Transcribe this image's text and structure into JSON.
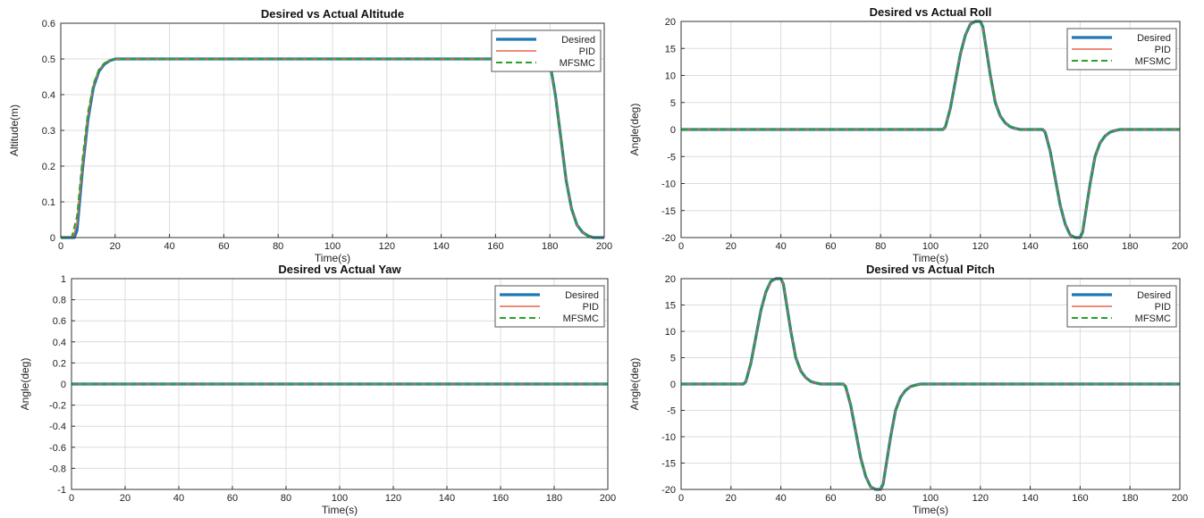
{
  "colors": {
    "desired": "#1f77b4",
    "pid": "#e8654a",
    "mfsmc": "#2ca02c",
    "grid": "#dcdcdc",
    "axis": "#333333"
  },
  "chart_data": [
    {
      "type": "line",
      "title": "Desired vs Actual Altitude",
      "xlabel": "Time(s)",
      "ylabel": "Altitude(m)",
      "xlim": [
        0,
        200
      ],
      "ylim": [
        0,
        0.6
      ],
      "xticks": [
        "0",
        "20",
        "40",
        "60",
        "80",
        "100",
        "120",
        "140",
        "160",
        "180",
        "200"
      ],
      "yticks": [
        "0",
        "0.1",
        "0.2",
        "0.3",
        "0.4",
        "0.5",
        "0.6"
      ],
      "grid": true,
      "legend": "top-right",
      "series": [
        {
          "name": "Desired",
          "x": [
            0,
            5,
            6,
            8,
            10,
            12,
            14,
            16,
            18,
            20,
            25,
            179,
            180,
            182,
            184,
            186,
            188,
            190,
            192,
            194,
            196,
            200
          ],
          "y": [
            0,
            0,
            0.02,
            0.19,
            0.33,
            0.42,
            0.465,
            0.485,
            0.495,
            0.5,
            0.5,
            0.5,
            0.49,
            0.4,
            0.28,
            0.16,
            0.08,
            0.035,
            0.015,
            0.005,
            0,
            0
          ]
        },
        {
          "name": "PID",
          "x": [
            0,
            4.5,
            6,
            8,
            10,
            12,
            14,
            16,
            18,
            20,
            25,
            179,
            180,
            182,
            184,
            186,
            188,
            190,
            192,
            194,
            196,
            200
          ],
          "y": [
            0,
            0,
            0.04,
            0.2,
            0.34,
            0.425,
            0.468,
            0.487,
            0.496,
            0.5,
            0.5,
            0.5,
            0.49,
            0.4,
            0.28,
            0.16,
            0.08,
            0.035,
            0.015,
            0.005,
            0,
            0
          ]
        },
        {
          "name": "MFSMC",
          "x": [
            0,
            4,
            6,
            8,
            10,
            12,
            14,
            16,
            18,
            20,
            25,
            179,
            180,
            182,
            184,
            186,
            188,
            190,
            192,
            194,
            196,
            200
          ],
          "y": [
            0,
            0,
            0.06,
            0.22,
            0.35,
            0.43,
            0.47,
            0.488,
            0.496,
            0.5,
            0.5,
            0.5,
            0.49,
            0.4,
            0.28,
            0.16,
            0.08,
            0.035,
            0.015,
            0.005,
            0,
            0
          ]
        }
      ]
    },
    {
      "type": "line",
      "title": "Desired vs Actual Roll",
      "xlabel": "Time(s)",
      "ylabel": "Angle(deg)",
      "xlim": [
        0,
        200
      ],
      "ylim": [
        -20,
        20
      ],
      "xticks": [
        "0",
        "20",
        "40",
        "60",
        "80",
        "100",
        "120",
        "140",
        "160",
        "180",
        "200"
      ],
      "yticks": [
        "-20",
        "-15",
        "-10",
        "-5",
        "0",
        "5",
        "10",
        "15",
        "20"
      ],
      "grid": true,
      "legend": "top-right",
      "series": [
        {
          "name": "Desired",
          "x": [
            0,
            105,
            106,
            108,
            110,
            112,
            114,
            116,
            118,
            120,
            121,
            122,
            124,
            126,
            128,
            130,
            132,
            134,
            136,
            138,
            140,
            142,
            145,
            146,
            148,
            150,
            152,
            154,
            156,
            158,
            160,
            161,
            162,
            164,
            166,
            168,
            170,
            172,
            174,
            176,
            180,
            200
          ],
          "y": [
            0,
            0,
            0.5,
            4,
            9,
            14,
            17.5,
            19.5,
            20,
            20,
            19,
            16,
            10,
            5,
            2.5,
            1.2,
            0.5,
            0.2,
            0,
            0,
            0,
            0,
            0,
            -0.5,
            -4,
            -9,
            -14,
            -17.5,
            -19.5,
            -20,
            -20,
            -19,
            -16,
            -10,
            -5,
            -2.5,
            -1.2,
            -0.5,
            -0.2,
            0,
            0,
            0
          ]
        },
        {
          "name": "PID",
          "x": [
            0,
            105,
            106,
            108,
            110,
            112,
            114,
            116,
            118,
            120,
            121,
            122,
            124,
            126,
            128,
            130,
            132,
            134,
            136,
            138,
            140,
            142,
            145,
            146,
            148,
            150,
            152,
            154,
            156,
            158,
            160,
            161,
            162,
            164,
            166,
            168,
            170,
            172,
            174,
            176,
            180,
            200
          ],
          "y": [
            0,
            0,
            0.5,
            4,
            9,
            14,
            17.5,
            19.5,
            20,
            20,
            19,
            16,
            10,
            5,
            2.5,
            1.2,
            0.5,
            0.2,
            0,
            0,
            0,
            0,
            0,
            -0.5,
            -4,
            -9,
            -14,
            -17.5,
            -19.5,
            -20,
            -20,
            -19,
            -16,
            -10,
            -5,
            -2.5,
            -1.2,
            -0.5,
            -0.2,
            0,
            0,
            0
          ]
        },
        {
          "name": "MFSMC",
          "x": [
            0,
            105,
            106,
            108,
            110,
            112,
            114,
            116,
            118,
            120,
            121,
            122,
            124,
            126,
            128,
            130,
            132,
            134,
            136,
            138,
            140,
            142,
            145,
            146,
            148,
            150,
            152,
            154,
            156,
            158,
            160,
            161,
            162,
            164,
            166,
            168,
            170,
            172,
            174,
            176,
            180,
            200
          ],
          "y": [
            0,
            0,
            0.5,
            4,
            9,
            14,
            17.5,
            19.5,
            20,
            20,
            19,
            16,
            10,
            5,
            2.5,
            1.2,
            0.5,
            0.2,
            0,
            0,
            0,
            0,
            0,
            -0.5,
            -4,
            -9,
            -14,
            -17.5,
            -19.5,
            -20,
            -20,
            -19,
            -16,
            -10,
            -5,
            -2.5,
            -1.2,
            -0.5,
            -0.2,
            0,
            0,
            0
          ]
        }
      ]
    },
    {
      "type": "line",
      "title": "Desired vs Actual Yaw",
      "xlabel": "Time(s)",
      "ylabel": "Angle(deg)",
      "xlim": [
        0,
        200
      ],
      "ylim": [
        -1,
        1
      ],
      "xticks": [
        "0",
        "20",
        "40",
        "60",
        "80",
        "100",
        "120",
        "140",
        "160",
        "180",
        "200"
      ],
      "yticks": [
        "-1",
        "-0.8",
        "-0.6",
        "-0.4",
        "-0.2",
        "0",
        "0.2",
        "0.4",
        "0.6",
        "0.8",
        "1"
      ],
      "grid": true,
      "legend": "top-right",
      "series": [
        {
          "name": "Desired",
          "x": [
            0,
            200
          ],
          "y": [
            0,
            0
          ]
        },
        {
          "name": "PID",
          "x": [
            0,
            200
          ],
          "y": [
            0,
            0
          ]
        },
        {
          "name": "MFSMC",
          "x": [
            0,
            200
          ],
          "y": [
            0,
            0
          ]
        }
      ]
    },
    {
      "type": "line",
      "title": "Desired vs Actual Pitch",
      "xlabel": "Time(s)",
      "ylabel": "Angle(deg)",
      "xlim": [
        0,
        200
      ],
      "ylim": [
        -20,
        20
      ],
      "xticks": [
        "0",
        "20",
        "40",
        "60",
        "80",
        "100",
        "120",
        "140",
        "160",
        "180",
        "200"
      ],
      "yticks": [
        "-20",
        "-15",
        "-10",
        "-5",
        "0",
        "5",
        "10",
        "15",
        "20"
      ],
      "grid": true,
      "legend": "top-right",
      "series": [
        {
          "name": "Desired",
          "x": [
            0,
            25,
            26,
            28,
            30,
            32,
            34,
            36,
            38,
            40,
            41,
            42,
            44,
            46,
            48,
            50,
            52,
            54,
            56,
            58,
            60,
            62,
            65,
            66,
            68,
            70,
            72,
            74,
            76,
            78,
            80,
            81,
            82,
            84,
            86,
            88,
            90,
            92,
            94,
            96,
            100,
            200
          ],
          "y": [
            0,
            0,
            0.5,
            4,
            9,
            14,
            17.5,
            19.5,
            20,
            20,
            19,
            16,
            10,
            5,
            2.5,
            1.2,
            0.5,
            0.2,
            0,
            0,
            0,
            0,
            0,
            -0.5,
            -4,
            -9,
            -14,
            -17.5,
            -19.5,
            -20,
            -20,
            -19,
            -16,
            -10,
            -5,
            -2.5,
            -1.2,
            -0.5,
            -0.2,
            0,
            0,
            0
          ]
        },
        {
          "name": "PID",
          "x": [
            0,
            25,
            26,
            28,
            30,
            32,
            34,
            36,
            38,
            40,
            41,
            42,
            44,
            46,
            48,
            50,
            52,
            54,
            56,
            58,
            60,
            62,
            65,
            66,
            68,
            70,
            72,
            74,
            76,
            78,
            80,
            81,
            82,
            84,
            86,
            88,
            90,
            92,
            94,
            96,
            100,
            200
          ],
          "y": [
            0,
            0,
            0.5,
            4,
            9,
            14,
            17.5,
            19.5,
            20,
            20,
            19,
            16,
            10,
            5,
            2.5,
            1.2,
            0.5,
            0.2,
            0,
            0,
            0,
            0,
            0,
            -0.5,
            -4,
            -9,
            -14,
            -17.5,
            -19.5,
            -20,
            -20,
            -19,
            -16,
            -10,
            -5,
            -2.5,
            -1.2,
            -0.5,
            -0.2,
            0,
            0,
            0
          ]
        },
        {
          "name": "MFSMC",
          "x": [
            0,
            25,
            26,
            28,
            30,
            32,
            34,
            36,
            38,
            40,
            41,
            42,
            44,
            46,
            48,
            50,
            52,
            54,
            56,
            58,
            60,
            62,
            65,
            66,
            68,
            70,
            72,
            74,
            76,
            78,
            80,
            81,
            82,
            84,
            86,
            88,
            90,
            92,
            94,
            96,
            100,
            200
          ],
          "y": [
            0,
            0,
            0.5,
            4,
            9,
            14,
            17.5,
            19.5,
            20,
            20,
            19,
            16,
            10,
            5,
            2.5,
            1.2,
            0.5,
            0.2,
            0,
            0,
            0,
            0,
            0,
            -0.5,
            -4,
            -9,
            -14,
            -17.5,
            -19.5,
            -20,
            -20,
            -19,
            -16,
            -10,
            -5,
            -2.5,
            -1.2,
            -0.5,
            -0.2,
            0,
            0,
            0
          ]
        }
      ]
    }
  ]
}
